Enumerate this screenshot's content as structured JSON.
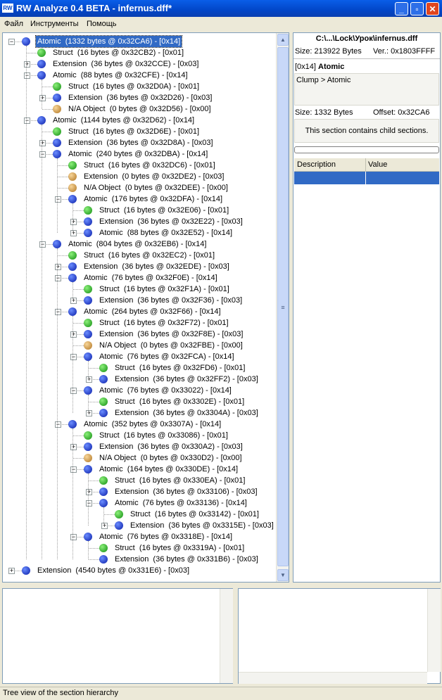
{
  "window": {
    "title": "RW Analyze 0.4 BETA - infernus.dff*"
  },
  "menu": [
    "Файл",
    "Инструменты",
    "Помощь"
  ],
  "tree": {
    "nodes": [
      {
        "label": "Atomic  (1332 bytes @ 0x32CA6) - [0x14]",
        "icon": "blue",
        "expanded": true,
        "selected": true,
        "children": [
          {
            "label": "Struct  (16 bytes @ 0x32CB2) - [0x01]",
            "icon": "green"
          },
          {
            "label": "Extension  (36 bytes @ 0x32CCE) - [0x03]",
            "icon": "blue",
            "expanded": false
          },
          {
            "label": "Atomic  (88 bytes @ 0x32CFE) - [0x14]",
            "icon": "blue",
            "expanded": true,
            "children": [
              {
                "label": "Struct  (16 bytes @ 0x32D0A) - [0x01]",
                "icon": "green"
              },
              {
                "label": "Extension  (36 bytes @ 0x32D26) - [0x03]",
                "icon": "blue",
                "expanded": false
              },
              {
                "label": "N/A Object  (0 bytes @ 0x32D56) - [0x00]",
                "icon": "orange"
              }
            ]
          },
          {
            "label": "Atomic  (1144 bytes @ 0x32D62) - [0x14]",
            "icon": "blue",
            "expanded": true,
            "children": [
              {
                "label": "Struct  (16 bytes @ 0x32D6E) - [0x01]",
                "icon": "green"
              },
              {
                "label": "Extension  (36 bytes @ 0x32D8A) - [0x03]",
                "icon": "blue",
                "expanded": false
              },
              {
                "label": "Atomic  (240 bytes @ 0x32DBA) - [0x14]",
                "icon": "blue",
                "expanded": true,
                "children": [
                  {
                    "label": "Struct  (16 bytes @ 0x32DC6) - [0x01]",
                    "icon": "green"
                  },
                  {
                    "label": "Extension  (0 bytes @ 0x32DE2) - [0x03]",
                    "icon": "orange"
                  },
                  {
                    "label": "N/A Object  (0 bytes @ 0x32DEE) - [0x00]",
                    "icon": "orange"
                  },
                  {
                    "label": "Atomic  (176 bytes @ 0x32DFA) - [0x14]",
                    "icon": "blue",
                    "expanded": true,
                    "children": [
                      {
                        "label": "Struct  (16 bytes @ 0x32E06) - [0x01]",
                        "icon": "green"
                      },
                      {
                        "label": "Extension  (36 bytes @ 0x32E22) - [0x03]",
                        "icon": "blue",
                        "expanded": false
                      },
                      {
                        "label": "Atomic  (88 bytes @ 0x32E52) - [0x14]",
                        "icon": "blue",
                        "expanded": false
                      }
                    ]
                  }
                ]
              },
              {
                "label": "Atomic  (804 bytes @ 0x32EB6) - [0x14]",
                "icon": "blue",
                "expanded": true,
                "children": [
                  {
                    "label": "Struct  (16 bytes @ 0x32EC2) - [0x01]",
                    "icon": "green"
                  },
                  {
                    "label": "Extension  (36 bytes @ 0x32EDE) - [0x03]",
                    "icon": "blue",
                    "expanded": false
                  },
                  {
                    "label": "Atomic  (76 bytes @ 0x32F0E) - [0x14]",
                    "icon": "blue",
                    "expanded": true,
                    "children": [
                      {
                        "label": "Struct  (16 bytes @ 0x32F1A) - [0x01]",
                        "icon": "green"
                      },
                      {
                        "label": "Extension  (36 bytes @ 0x32F36) - [0x03]",
                        "icon": "blue",
                        "expanded": false
                      }
                    ]
                  },
                  {
                    "label": "Atomic  (264 bytes @ 0x32F66) - [0x14]",
                    "icon": "blue",
                    "expanded": true,
                    "children": [
                      {
                        "label": "Struct  (16 bytes @ 0x32F72) - [0x01]",
                        "icon": "green"
                      },
                      {
                        "label": "Extension  (36 bytes @ 0x32F8E) - [0x03]",
                        "icon": "blue",
                        "expanded": false
                      },
                      {
                        "label": "N/A Object  (0 bytes @ 0x32FBE) - [0x00]",
                        "icon": "orange"
                      },
                      {
                        "label": "Atomic  (76 bytes @ 0x32FCA) - [0x14]",
                        "icon": "blue",
                        "expanded": true,
                        "children": [
                          {
                            "label": "Struct  (16 bytes @ 0x32FD6) - [0x01]",
                            "icon": "green"
                          },
                          {
                            "label": "Extension  (36 bytes @ 0x32FF2) - [0x03]",
                            "icon": "blue",
                            "expanded": false
                          }
                        ]
                      },
                      {
                        "label": "Atomic  (76 bytes @ 0x33022) - [0x14]",
                        "icon": "blue",
                        "expanded": true,
                        "children": [
                          {
                            "label": "Struct  (16 bytes @ 0x3302E) - [0x01]",
                            "icon": "green"
                          },
                          {
                            "label": "Extension  (36 bytes @ 0x3304A) - [0x03]",
                            "icon": "blue",
                            "expanded": false
                          }
                        ]
                      }
                    ]
                  },
                  {
                    "label": "Atomic  (352 bytes @ 0x3307A) - [0x14]",
                    "icon": "blue",
                    "expanded": true,
                    "children": [
                      {
                        "label": "Struct  (16 bytes @ 0x33086) - [0x01]",
                        "icon": "green"
                      },
                      {
                        "label": "Extension  (36 bytes @ 0x330A2) - [0x03]",
                        "icon": "blue",
                        "expanded": false
                      },
                      {
                        "label": "N/A Object  (0 bytes @ 0x330D2) - [0x00]",
                        "icon": "orange"
                      },
                      {
                        "label": "Atomic  (164 bytes @ 0x330DE) - [0x14]",
                        "icon": "blue",
                        "expanded": true,
                        "children": [
                          {
                            "label": "Struct  (16 bytes @ 0x330EA) - [0x01]",
                            "icon": "green"
                          },
                          {
                            "label": "Extension  (36 bytes @ 0x33106) - [0x03]",
                            "icon": "blue",
                            "expanded": false
                          },
                          {
                            "label": "Atomic  (76 bytes @ 0x33136) - [0x14]",
                            "icon": "blue",
                            "expanded": true,
                            "children": [
                              {
                                "label": "Struct  (16 bytes @ 0x33142) - [0x01]",
                                "icon": "green"
                              },
                              {
                                "label": "Extension  (36 bytes @ 0x3315E) - [0x03]",
                                "icon": "blue",
                                "expanded": false
                              }
                            ]
                          }
                        ]
                      },
                      {
                        "label": "Atomic  (76 bytes @ 0x3318E) - [0x14]",
                        "icon": "blue",
                        "expanded": true,
                        "children": [
                          {
                            "label": "Struct  (16 bytes @ 0x3319A) - [0x01]",
                            "icon": "green"
                          },
                          {
                            "label": "Extension  (36 bytes @ 0x331B6) - [0x03]",
                            "icon": "blue"
                          }
                        ]
                      }
                    ]
                  }
                ]
              }
            ]
          }
        ]
      },
      {
        "label": "Extension  (4540 bytes @ 0x331E6) - [0x03]",
        "icon": "blue",
        "expanded": false
      }
    ]
  },
  "file_info": {
    "path": "C:\\...\\Lock\\Урок\\infernus.dff",
    "size": "Size: 213922 Bytes",
    "version": "Ver.: 0x1803FFFF"
  },
  "section": {
    "id": "[0x14]",
    "name": "Atomic",
    "breadcrumb": "Clump > Atomic",
    "size": "Size: 1332 Bytes",
    "offset": "Offset: 0x32CA6",
    "note": "This section contains child sections."
  },
  "properties": {
    "columns": [
      "Description",
      "Value"
    ]
  },
  "status": "Tree view of the section hierarchy"
}
